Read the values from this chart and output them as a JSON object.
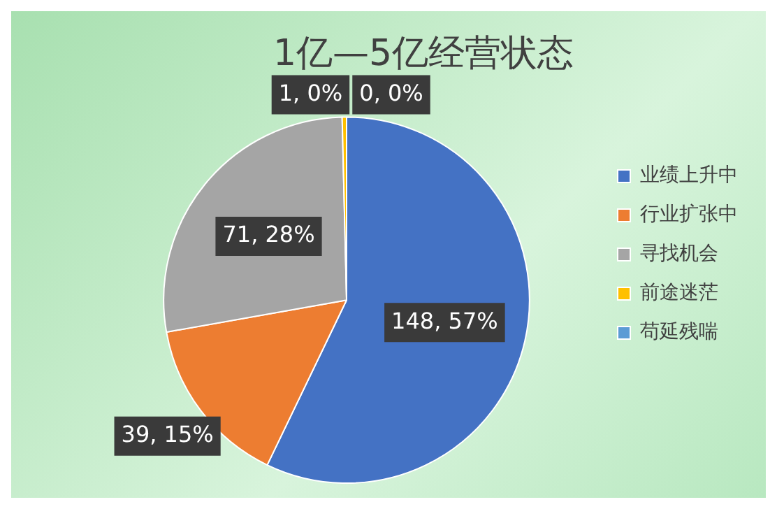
{
  "chart_data": {
    "type": "pie",
    "title": "1亿—5亿经营状态",
    "categories": [
      "业绩上升中",
      "行业扩张中",
      "寻找机会",
      "前途迷茫",
      "苟延残喘"
    ],
    "values": [
      148,
      39,
      71,
      1,
      0
    ],
    "colors": [
      "#4472c4",
      "#ed7d31",
      "#a5a5a5",
      "#ffc000",
      "#5b9bd5"
    ],
    "value_labels": [
      "148, 57%",
      "39, 15%",
      "71, 28%",
      "1, 0%",
      "0, 0%"
    ],
    "legend": "right"
  }
}
